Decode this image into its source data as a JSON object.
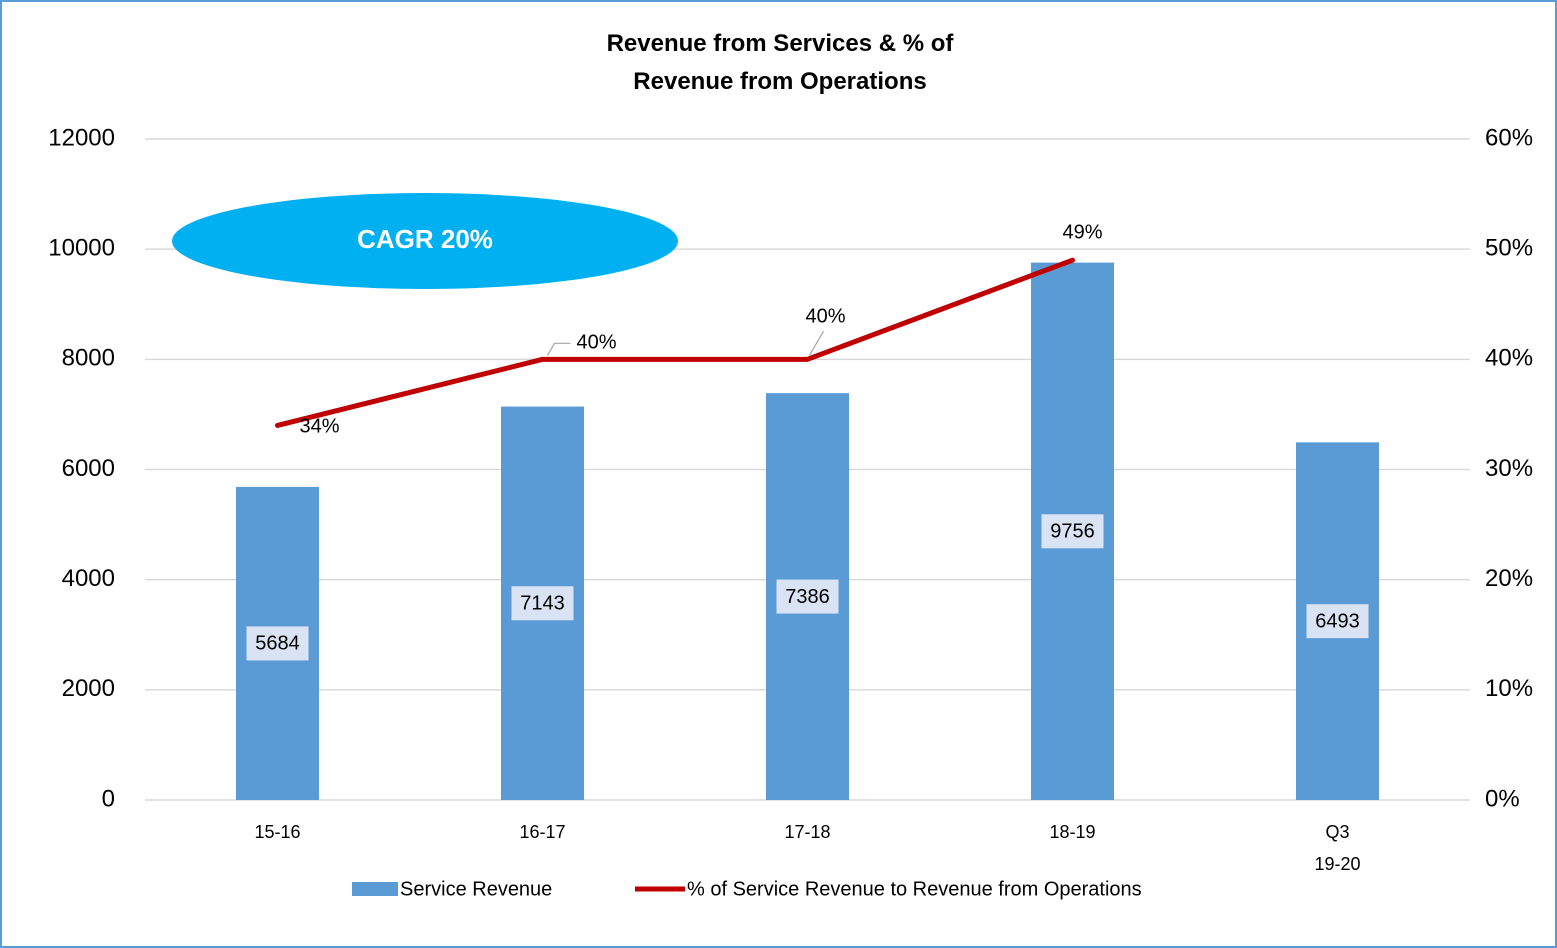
{
  "chart_data": {
    "type": "bar_line",
    "title": "Revenue from Services & % of\nRevenue from Operations",
    "categories": [
      "15-16",
      "16-17",
      "17-18",
      "18-19",
      "Q3\n19-20"
    ],
    "series": [
      {
        "name": "Service Revenue",
        "type": "bar",
        "color": "#5b9bd5",
        "values": [
          5684,
          7143,
          7386,
          9756,
          6493
        ]
      },
      {
        "name": "% of Service Revenue to  Revenue from Operations",
        "type": "line",
        "axis": "y2",
        "color": "#c00000",
        "values": [
          34,
          40,
          40,
          49,
          null
        ],
        "value_labels": [
          "34%",
          "40%",
          "40%",
          "49%",
          null
        ]
      }
    ],
    "ylim": [
      0,
      12000
    ],
    "yticks": [
      0,
      2000,
      4000,
      6000,
      8000,
      10000,
      12000
    ],
    "y2lim": [
      0,
      60
    ],
    "y2ticks": [
      {
        "value": 0,
        "label": "0%"
      },
      {
        "value": 10,
        "label": "10%"
      },
      {
        "value": 20,
        "label": "20%"
      },
      {
        "value": 30,
        "label": "30%"
      },
      {
        "value": 40,
        "label": "40%"
      },
      {
        "value": 50,
        "label": "50%"
      },
      {
        "value": 60,
        "label": "60%"
      }
    ],
    "grid": true,
    "legend": "bottom",
    "annotations": [
      {
        "text": "CAGR 20%",
        "color": "#00b0f0"
      }
    ]
  }
}
